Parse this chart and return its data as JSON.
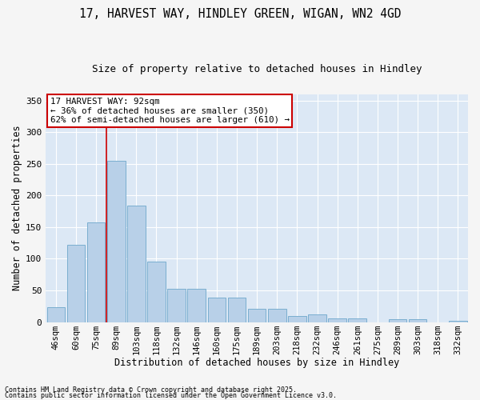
{
  "title1": "17, HARVEST WAY, HINDLEY GREEN, WIGAN, WN2 4GD",
  "title2": "Size of property relative to detached houses in Hindley",
  "xlabel": "Distribution of detached houses by size in Hindley",
  "ylabel": "Number of detached properties",
  "bar_values": [
    23,
    122,
    157,
    255,
    184,
    95,
    53,
    53,
    38,
    38,
    21,
    21,
    10,
    12,
    6,
    6,
    0,
    5,
    5,
    0,
    2
  ],
  "categories": [
    "46sqm",
    "60sqm",
    "75sqm",
    "89sqm",
    "103sqm",
    "118sqm",
    "132sqm",
    "146sqm",
    "160sqm",
    "175sqm",
    "189sqm",
    "203sqm",
    "218sqm",
    "232sqm",
    "246sqm",
    "261sqm",
    "275sqm",
    "289sqm",
    "303sqm",
    "318sqm",
    "332sqm"
  ],
  "bar_color": "#b8d0e8",
  "bar_edge_color": "#7aaed0",
  "bg_color": "#dce8f5",
  "fig_bg_color": "#f5f5f5",
  "grid_color": "#ffffff",
  "annotation_text": "17 HARVEST WAY: 92sqm\n← 36% of detached houses are smaller (350)\n62% of semi-detached houses are larger (610) →",
  "annotation_box_facecolor": "#ffffff",
  "annotation_border_color": "#cc0000",
  "footnote1": "Contains HM Land Registry data © Crown copyright and database right 2025.",
  "footnote2": "Contains public sector information licensed under the Open Government Licence v3.0.",
  "ylim": [
    0,
    360
  ],
  "redline_index": 3
}
